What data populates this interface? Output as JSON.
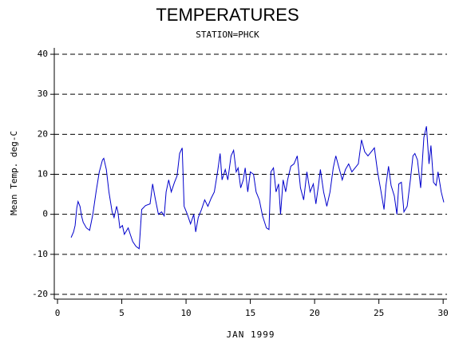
{
  "chart_data": {
    "type": "line",
    "title": "TEMPERATURES",
    "subtitle": "STATION=PHCK",
    "xlabel": "JAN 1999",
    "ylabel": "Mean Temp. deg-C",
    "xlim": [
      -0.25,
      30.3
    ],
    "ylim": [
      -21.2,
      41.6
    ],
    "xticks": [
      0,
      5,
      10,
      15,
      20,
      25,
      30
    ],
    "yticks": [
      -20,
      -10,
      0,
      10,
      20,
      30,
      40
    ],
    "grid": true,
    "series": [
      {
        "color": "#0000cc",
        "x": [
          1.06,
          1.25,
          1.37,
          1.5,
          1.6,
          1.75,
          1.87,
          2.0,
          2.25,
          2.5,
          2.75,
          3.0,
          3.25,
          3.5,
          3.6,
          3.8,
          4.0,
          4.25,
          4.4,
          4.6,
          4.7,
          4.85,
          5.05,
          5.2,
          5.5,
          5.66,
          5.85,
          6.1,
          6.35,
          6.55,
          6.85,
          7.2,
          7.4,
          7.6,
          7.85,
          8.1,
          8.3,
          8.45,
          8.65,
          8.85,
          9.1,
          9.3,
          9.5,
          9.7,
          9.85,
          10.1,
          10.35,
          10.6,
          10.75,
          10.95,
          11.2,
          11.45,
          11.7,
          11.95,
          12.2,
          12.45,
          12.65,
          12.8,
          13.05,
          13.25,
          13.5,
          13.7,
          13.9,
          14.05,
          14.25,
          14.45,
          14.6,
          14.8,
          15.0,
          15.25,
          15.45,
          15.7,
          15.95,
          16.25,
          16.45,
          16.6,
          16.8,
          17.0,
          17.2,
          17.35,
          17.55,
          17.75,
          17.9,
          18.15,
          18.4,
          18.65,
          18.9,
          19.15,
          19.4,
          19.65,
          19.9,
          20.1,
          20.3,
          20.45,
          20.7,
          20.95,
          21.2,
          21.45,
          21.65,
          21.9,
          22.15,
          22.4,
          22.65,
          22.9,
          23.15,
          23.4,
          23.65,
          23.9,
          24.15,
          24.4,
          24.65,
          24.9,
          25.15,
          25.4,
          25.55,
          25.75,
          25.95,
          26.2,
          26.4,
          26.55,
          26.75,
          26.95,
          27.2,
          27.45,
          27.65,
          27.8,
          28.0,
          28.25,
          28.5,
          28.7,
          28.9,
          29.05,
          29.25,
          29.45,
          29.6,
          29.85,
          30.05
        ],
        "values": [
          -5.8,
          -4.4,
          -2.8,
          1.6,
          3.2,
          2,
          -0.4,
          -2,
          -3.4,
          -4,
          0,
          5.6,
          10.6,
          13.6,
          14,
          11.2,
          5.6,
          0.6,
          -0.8,
          2,
          0.6,
          -3.4,
          -2.8,
          -5,
          -3.4,
          -5,
          -6.8,
          -8,
          -8.6,
          1.2,
          2.2,
          2.6,
          7.6,
          4,
          0,
          0.6,
          -0.4,
          5.6,
          8.6,
          5.6,
          8,
          9.6,
          15.2,
          16.6,
          2,
          0,
          -2.4,
          0,
          -4.4,
          -0.8,
          1.2,
          3.6,
          2,
          4,
          5.6,
          10.6,
          15.2,
          8.6,
          11.2,
          8.6,
          14.6,
          16,
          10.6,
          11.6,
          6.6,
          8.6,
          11.6,
          5.6,
          10.6,
          10,
          5.6,
          3.6,
          -0.4,
          -3.4,
          -3.8,
          10.6,
          11.6,
          5.6,
          7.6,
          0,
          8.6,
          5.6,
          8.6,
          12,
          12.6,
          14.6,
          6.6,
          3.6,
          10.6,
          5.6,
          7.6,
          2.6,
          7.2,
          11.2,
          5.6,
          2,
          5.6,
          11.6,
          14.6,
          11.6,
          8.6,
          11.2,
          12.6,
          10.6,
          11.6,
          12.6,
          18.6,
          15.6,
          14.6,
          15.6,
          16.6,
          10.6,
          6,
          1.2,
          7.2,
          12,
          7.2,
          4.6,
          0,
          7.6,
          8,
          0.6,
          2,
          8.6,
          14.6,
          15.2,
          13.6,
          6.6,
          19.2,
          22,
          12.6,
          17.2,
          8,
          7.2,
          10.6,
          5.6,
          3
        ]
      }
    ]
  }
}
